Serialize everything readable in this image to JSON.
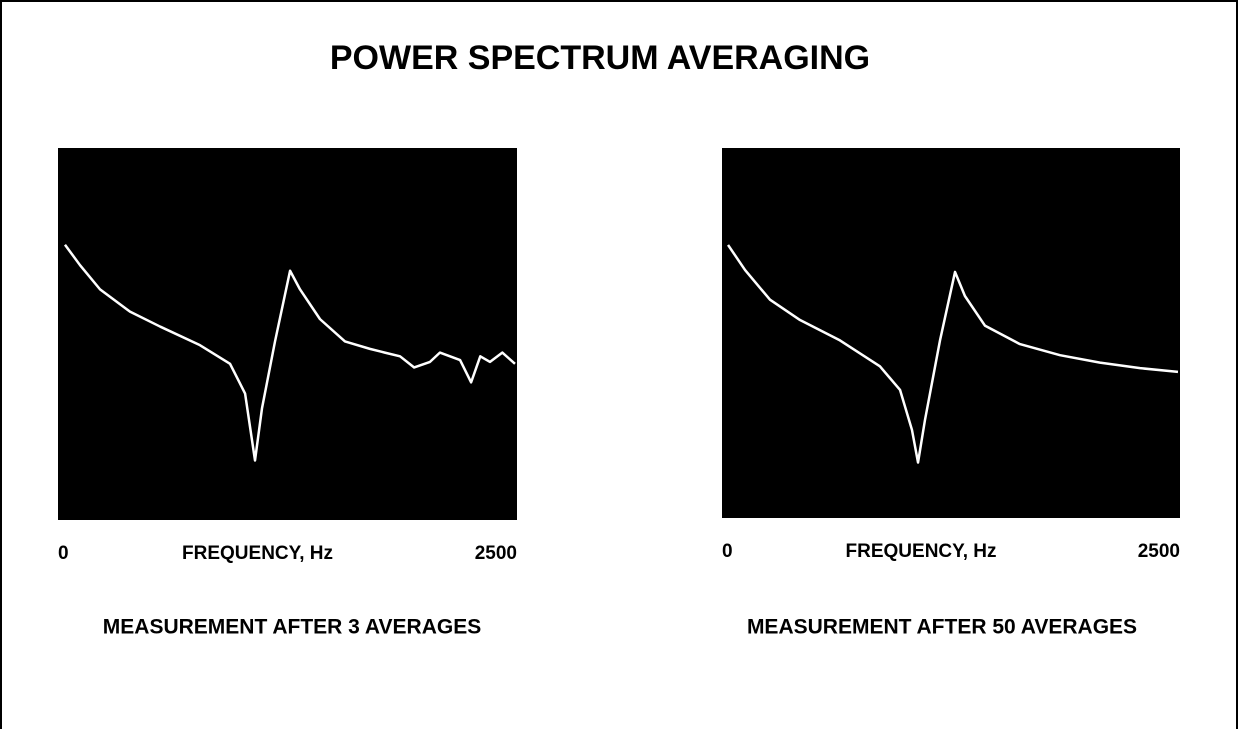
{
  "title": "POWER SPECTRUM AVERAGING",
  "chart_data": [
    {
      "type": "line",
      "xlabel": "FREQUENCY, Hz",
      "caption": "MEASUREMENT AFTER 3 AVERAGES",
      "x": [
        38,
        120,
        229,
        392,
        556,
        773,
        937,
        1019,
        1073,
        1111,
        1182,
        1264,
        1318,
        1427,
        1563,
        1699,
        1780,
        1863,
        1940,
        2026,
        2080,
        2190,
        2250,
        2300,
        2353,
        2420,
        2489
      ],
      "values": [
        74,
        68.5,
        62,
        56,
        52,
        47,
        42,
        34,
        16,
        30,
        48,
        67,
        62,
        54,
        48,
        46,
        45,
        44,
        41,
        42.5,
        45,
        43,
        37,
        44,
        42.5,
        45,
        42
      ],
      "color": "#ffffff",
      "background": "#000000",
      "xlim": [
        0,
        2500
      ],
      "xticks": [
        0,
        2500
      ],
      "ylim": [
        0,
        100
      ]
    },
    {
      "type": "line",
      "xlabel": "FREQUENCY, Hz",
      "caption": "MEASUREMENT AFTER 50 AVERAGES",
      "x": [
        33,
        126,
        262,
        426,
        644,
        862,
        972,
        1037,
        1070,
        1108,
        1190,
        1272,
        1326,
        1435,
        1626,
        1845,
        2063,
        2282,
        2489
      ],
      "values": [
        73.8,
        67,
        59,
        53.5,
        48,
        41,
        34.6,
        23.8,
        15,
        26.5,
        48,
        66.5,
        60,
        52,
        47,
        44,
        42,
        40.5,
        39.5
      ],
      "color": "#ffffff",
      "background": "#000000",
      "xlim": [
        0,
        2500
      ],
      "xticks": [
        0,
        2500
      ],
      "ylim": [
        0,
        100
      ]
    }
  ]
}
